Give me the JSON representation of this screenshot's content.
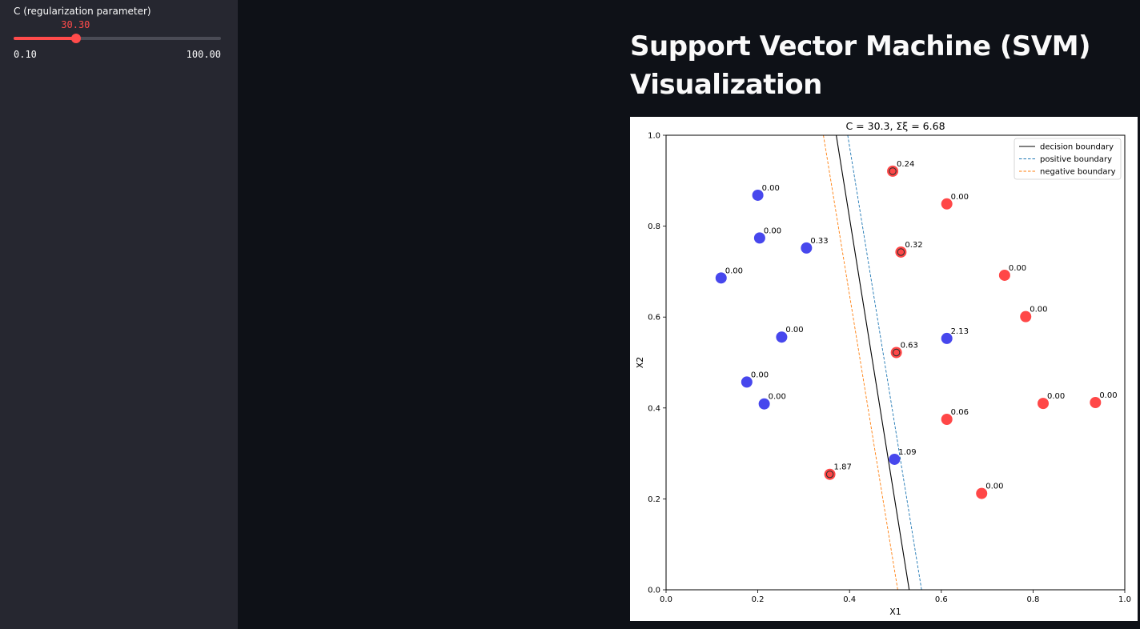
{
  "sidebar": {
    "slider": {
      "label": "C (regularization parameter)",
      "value": 30.3,
      "value_text": "30.30",
      "min": 0.1,
      "max": 100,
      "min_text": "0.10",
      "max_text": "100.00",
      "accent_color": "#ff4b4b"
    }
  },
  "main": {
    "title": "Support Vector Machine (SVM) Visualization"
  },
  "chart_data": {
    "type": "scatter",
    "title": "C = 30.3, Σξ = 6.68",
    "xlabel": "X1",
    "ylabel": "X2",
    "xlim": [
      0.0,
      1.0
    ],
    "ylim": [
      0.0,
      1.0
    ],
    "xticks": [
      "0.0",
      "0.2",
      "0.4",
      "0.6",
      "0.8",
      "1.0"
    ],
    "yticks": [
      "0.0",
      "0.2",
      "0.4",
      "0.6",
      "0.8",
      "1.0"
    ],
    "grid": false,
    "legend_position": "top-right",
    "legend": [
      {
        "label": "decision boundary",
        "color": "#000000",
        "style": "solid"
      },
      {
        "label": "positive boundary",
        "color": "#1f77b4",
        "style": "dashed"
      },
      {
        "label": "negative boundary",
        "color": "#ff7f0e",
        "style": "dashed"
      }
    ],
    "lines": [
      {
        "name": "decision boundary",
        "points": [
          [
            0.371,
            1.0
          ],
          [
            0.53,
            0.0
          ]
        ]
      },
      {
        "name": "positive boundary",
        "points": [
          [
            0.396,
            1.0
          ],
          [
            0.557,
            0.0
          ]
        ]
      },
      {
        "name": "negative boundary",
        "points": [
          [
            0.343,
            1.0
          ],
          [
            0.505,
            0.0
          ]
        ]
      }
    ],
    "class_colors": {
      "positive": "#ff0000",
      "negative": "#0000e6"
    },
    "points": [
      {
        "x": 0.2,
        "y": 0.868,
        "cls": "negative",
        "slack": "0.00",
        "support": false
      },
      {
        "x": 0.204,
        "y": 0.774,
        "cls": "negative",
        "slack": "0.00",
        "support": false
      },
      {
        "x": 0.306,
        "y": 0.752,
        "cls": "negative",
        "slack": "0.33",
        "support": false
      },
      {
        "x": 0.12,
        "y": 0.686,
        "cls": "negative",
        "slack": "0.00",
        "support": false
      },
      {
        "x": 0.252,
        "y": 0.556,
        "cls": "negative",
        "slack": "0.00",
        "support": false
      },
      {
        "x": 0.176,
        "y": 0.457,
        "cls": "negative",
        "slack": "0.00",
        "support": false
      },
      {
        "x": 0.214,
        "y": 0.409,
        "cls": "negative",
        "slack": "0.00",
        "support": false
      },
      {
        "x": 0.498,
        "y": 0.287,
        "cls": "negative",
        "slack": "1.09",
        "support": false
      },
      {
        "x": 0.612,
        "y": 0.553,
        "cls": "negative",
        "slack": "2.13",
        "support": false
      },
      {
        "x": 0.494,
        "y": 0.921,
        "cls": "positive",
        "slack": "0.24",
        "support": true
      },
      {
        "x": 0.612,
        "y": 0.849,
        "cls": "positive",
        "slack": "0.00",
        "support": false
      },
      {
        "x": 0.512,
        "y": 0.743,
        "cls": "positive",
        "slack": "0.32",
        "support": true
      },
      {
        "x": 0.738,
        "y": 0.692,
        "cls": "positive",
        "slack": "0.00",
        "support": false
      },
      {
        "x": 0.784,
        "y": 0.601,
        "cls": "positive",
        "slack": "0.00",
        "support": false
      },
      {
        "x": 0.502,
        "y": 0.522,
        "cls": "positive",
        "slack": "0.63",
        "support": true
      },
      {
        "x": 0.612,
        "y": 0.375,
        "cls": "positive",
        "slack": "0.06",
        "support": false
      },
      {
        "x": 0.822,
        "y": 0.41,
        "cls": "positive",
        "slack": "0.00",
        "support": false
      },
      {
        "x": 0.936,
        "y": 0.412,
        "cls": "positive",
        "slack": "0.00",
        "support": false
      },
      {
        "x": 0.357,
        "y": 0.254,
        "cls": "positive",
        "slack": "1.87",
        "support": true
      },
      {
        "x": 0.688,
        "y": 0.212,
        "cls": "positive",
        "slack": "0.00",
        "support": false
      }
    ]
  }
}
